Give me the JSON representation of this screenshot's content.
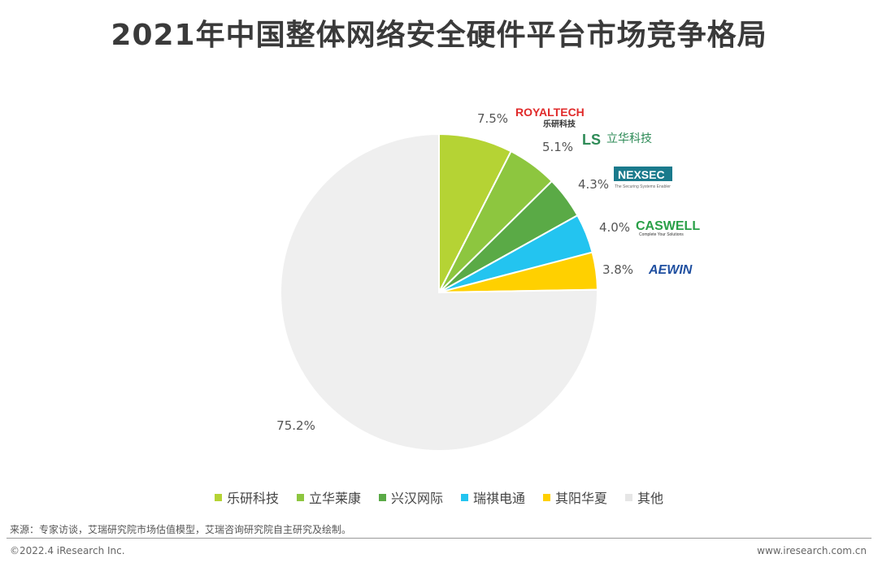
{
  "title": "2021年中国整体网络安全硬件平台市场竞争格局",
  "chart_data": {
    "type": "pie",
    "title": "2021年中国整体网络安全硬件平台市场竞争格局",
    "slices": [
      {
        "name": "乐研科技",
        "value": 7.5,
        "label": "7.5%",
        "color": "#b5d334"
      },
      {
        "name": "立华莱康",
        "value": 5.1,
        "label": "5.1%",
        "color": "#8dc63f"
      },
      {
        "name": "兴汉网际",
        "value": 4.3,
        "label": "4.3%",
        "color": "#5aaa46"
      },
      {
        "name": "瑞祺电通",
        "value": 4.0,
        "label": "4.0%",
        "color": "#23c4f0"
      },
      {
        "name": "其阳华夏",
        "value": 3.8,
        "label": "3.8%",
        "color": "#ffd000"
      },
      {
        "name": "其他",
        "value": 75.2,
        "label": "75.2%",
        "color": "#efefef"
      }
    ],
    "legend_position": "bottom"
  },
  "logos": {
    "royaltech": {
      "main": "ROYALTECH",
      "sub": "乐研科技",
      "color": "#e02a2a"
    },
    "lihua": {
      "main": "LS",
      "sub": "立华科技",
      "color": "#2e8b57"
    },
    "nexsec": {
      "main": "NEXSEC",
      "sub": "The Securing Systems Enabler",
      "color": "#1a7a8c"
    },
    "caswell": {
      "main": "CASWELL",
      "sub": "Complete Your Solutions",
      "color": "#2aa048"
    },
    "aewin": {
      "main": "AEWIN",
      "color": "#1f4fa0"
    }
  },
  "source": "来源：专家访谈，艾瑞研究院市场估值模型，艾瑞咨询研究院自主研究及绘制。",
  "copyright": "©2022.4 iResearch Inc.",
  "site": "www.iresearch.com.cn"
}
